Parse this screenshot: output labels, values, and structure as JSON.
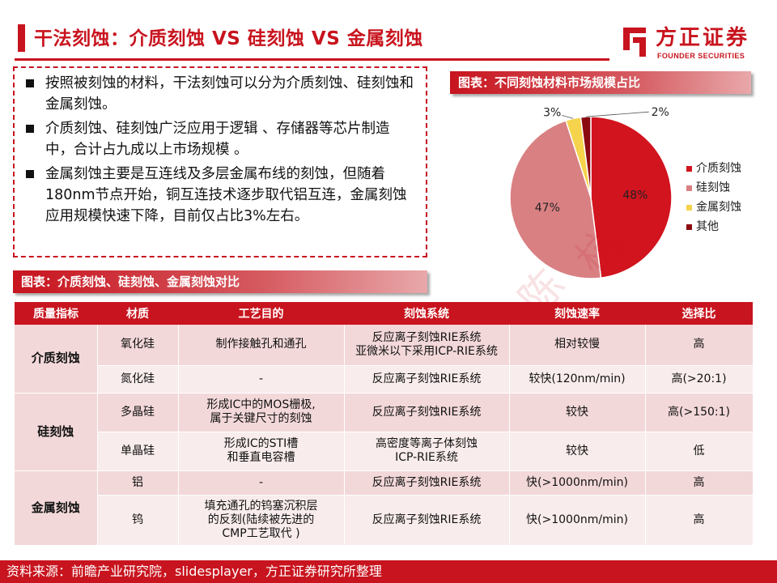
{
  "header": {
    "title": "干法刻蚀：介质刻蚀 VS 硅刻蚀 VS 金属刻蚀",
    "logo_cn": "方正证券",
    "logo_en": "FOUNDER SECURITIES"
  },
  "bullets": [
    "按照被刻蚀的材料，干法刻蚀可以分为介质刻蚀、硅刻蚀和金属刻蚀。",
    "介质刻蚀、硅刻蚀广泛应用于逻辑 、存储器等芯片制造中，合计占九成以上市场规模 。",
    "金属刻蚀主要是互连线及多层金属布线的刻蚀，但随着180nm节点开始，铜互连技术逐步取代铝互连，金属刻蚀应用规模快速下降，目前仅占比3%左右。"
  ],
  "pie_banner": "图表：不同刻蚀材料市场规模占比",
  "table_banner": "图表：介质刻蚀、硅刻蚀、金属刻蚀对比",
  "chart_data": {
    "type": "pie",
    "categories": [
      "介质刻蚀",
      "硅刻蚀",
      "金属刻蚀",
      "其他"
    ],
    "values": [
      48,
      47,
      3,
      2
    ],
    "labels": [
      "48%",
      "47%",
      "3%",
      "2%"
    ],
    "colors": [
      "#d2141e",
      "#d98083",
      "#f5d34c",
      "#8b0a10"
    ],
    "legend_position": "right"
  },
  "table": {
    "headers": [
      "质量指标",
      "材质",
      "工艺目的",
      "刻蚀系统",
      "刻蚀速率",
      "选择比"
    ],
    "groups": [
      {
        "name": "介质刻蚀",
        "rows": [
          [
            "氧化硅",
            "制作接触孔和通孔",
            "反应离子刻蚀RIE系统\n亚微米以下采用ICP-RIE系统",
            "相对较慢",
            "高"
          ],
          [
            "氮化硅",
            "-",
            "反应离子刻蚀RIE系统",
            "较快(120nm/min)",
            "高(>20:1)"
          ]
        ]
      },
      {
        "name": "硅刻蚀",
        "rows": [
          [
            "多晶硅",
            "形成IC中的MOS栅极,\n属于关键尺寸的刻蚀",
            "反应离子刻蚀RIE系统",
            "较快",
            "高(>150:1)"
          ],
          [
            "单晶硅",
            "形成IC的STI槽\n和垂直电容槽",
            "高密度等离子体刻蚀\nICP-RIE系统",
            "较快",
            "低"
          ]
        ]
      },
      {
        "name": "金属刻蚀",
        "rows": [
          [
            "铝",
            "-",
            "反应离子刻蚀RIE系统",
            "快(>1000nm/min)",
            "高"
          ],
          [
            "钨",
            "填充通孔的钨塞沉积层\n的反刻(陆续被先进的\nCMP工艺取代 )",
            "反应离子刻蚀RIE系统",
            "快(>1000nm/min)",
            "高"
          ]
        ]
      }
    ]
  },
  "footer": {
    "source": "资料来源：前瞻产业研究院，slidesplayer，方正证券研究所整理"
  },
  "watermark": [
    "方",
    "正",
    "科",
    "技",
    "陈",
    "杭"
  ]
}
